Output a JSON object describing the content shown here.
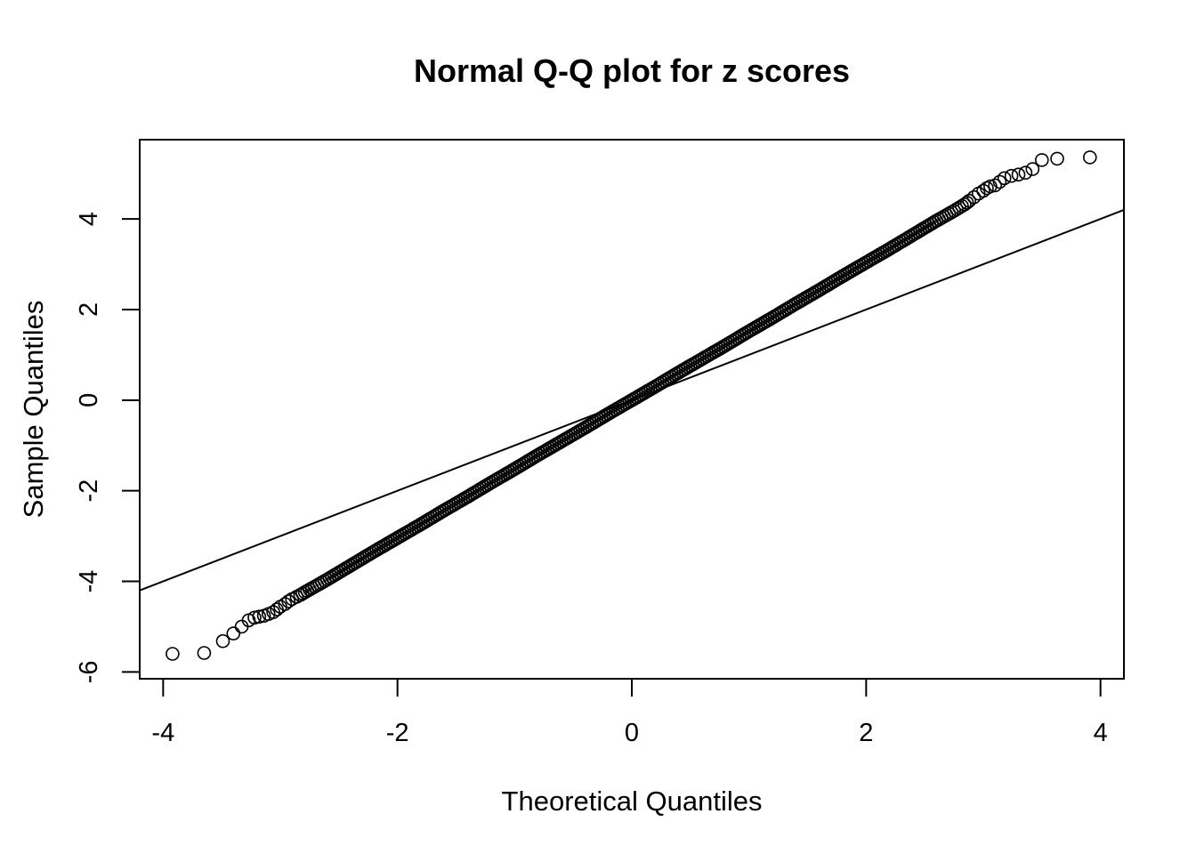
{
  "chart_data": {
    "type": "scatter",
    "title": "Normal Q-Q plot for z scores",
    "xlabel": "Theoretical Quantiles",
    "ylabel": "Sample Quantiles",
    "xlim": [
      -4.2,
      4.2
    ],
    "ylim": [
      -6.15,
      5.75
    ],
    "x_ticks": [
      -4,
      -2,
      0,
      2,
      4
    ],
    "y_ticks": [
      -6,
      -4,
      -2,
      0,
      2,
      4
    ],
    "x_tick_labels": [
      "-4",
      "-2",
      "0",
      "2",
      "4"
    ],
    "y_tick_labels": [
      "-6",
      "-4",
      "-2",
      "0",
      "2",
      "4"
    ],
    "reference_line": {
      "intercept": 0,
      "slope": 1
    },
    "n_points": 10000,
    "points": [
      {
        "x": -3.92,
        "y": -5.6
      },
      {
        "x": -3.65,
        "y": -5.58
      },
      {
        "x": -3.49,
        "y": -5.32
      },
      {
        "x": -3.4,
        "y": -5.15
      },
      {
        "x": -3.33,
        "y": -5.0
      },
      {
        "x": -3.27,
        "y": -4.86
      },
      {
        "x": -3.22,
        "y": -4.8
      },
      {
        "x": -3.18,
        "y": -4.78
      },
      {
        "x": -3.14,
        "y": -4.76
      },
      {
        "x": -3.1,
        "y": -4.72
      },
      {
        "x": -3.06,
        "y": -4.68
      },
      {
        "x": -3.03,
        "y": -4.62
      },
      {
        "x": -3.0,
        "y": -4.56
      },
      {
        "x": -2.96,
        "y": -4.5
      },
      {
        "x": -2.93,
        "y": -4.44
      },
      {
        "x": -2.9,
        "y": -4.39
      },
      {
        "x": -2.86,
        "y": -4.34
      },
      {
        "x": -2.83,
        "y": -4.3
      },
      {
        "x": -2.75,
        "y": -4.18
      },
      {
        "x": -2.6,
        "y": -3.96
      },
      {
        "x": -2.4,
        "y": -3.65
      },
      {
        "x": -2.2,
        "y": -3.34
      },
      {
        "x": -2.0,
        "y": -3.04
      },
      {
        "x": -1.8,
        "y": -2.74
      },
      {
        "x": -1.6,
        "y": -2.43
      },
      {
        "x": -1.4,
        "y": -2.13
      },
      {
        "x": -1.2,
        "y": -1.82
      },
      {
        "x": -1.0,
        "y": -1.52
      },
      {
        "x": -0.8,
        "y": -1.21
      },
      {
        "x": -0.6,
        "y": -0.91
      },
      {
        "x": -0.4,
        "y": -0.61
      },
      {
        "x": -0.2,
        "y": -0.3
      },
      {
        "x": 0.0,
        "y": 0.0
      },
      {
        "x": 0.2,
        "y": 0.3
      },
      {
        "x": 0.4,
        "y": 0.61
      },
      {
        "x": 0.6,
        "y": 0.91
      },
      {
        "x": 0.8,
        "y": 1.21
      },
      {
        "x": 1.0,
        "y": 1.52
      },
      {
        "x": 1.2,
        "y": 1.82
      },
      {
        "x": 1.4,
        "y": 2.13
      },
      {
        "x": 1.6,
        "y": 2.43
      },
      {
        "x": 1.8,
        "y": 2.74
      },
      {
        "x": 2.0,
        "y": 3.04
      },
      {
        "x": 2.2,
        "y": 3.34
      },
      {
        "x": 2.4,
        "y": 3.65
      },
      {
        "x": 2.6,
        "y": 3.96
      },
      {
        "x": 2.75,
        "y": 4.18
      },
      {
        "x": 2.84,
        "y": 4.32
      },
      {
        "x": 2.88,
        "y": 4.4
      },
      {
        "x": 2.92,
        "y": 4.48
      },
      {
        "x": 2.96,
        "y": 4.56
      },
      {
        "x": 3.0,
        "y": 4.62
      },
      {
        "x": 3.03,
        "y": 4.68
      },
      {
        "x": 3.06,
        "y": 4.72
      },
      {
        "x": 3.1,
        "y": 4.74
      },
      {
        "x": 3.14,
        "y": 4.82
      },
      {
        "x": 3.18,
        "y": 4.9
      },
      {
        "x": 3.24,
        "y": 4.95
      },
      {
        "x": 3.3,
        "y": 4.98
      },
      {
        "x": 3.36,
        "y": 5.02
      },
      {
        "x": 3.42,
        "y": 5.1
      },
      {
        "x": 3.5,
        "y": 5.3
      },
      {
        "x": 3.63,
        "y": 5.33
      },
      {
        "x": 3.91,
        "y": 5.36
      }
    ]
  }
}
